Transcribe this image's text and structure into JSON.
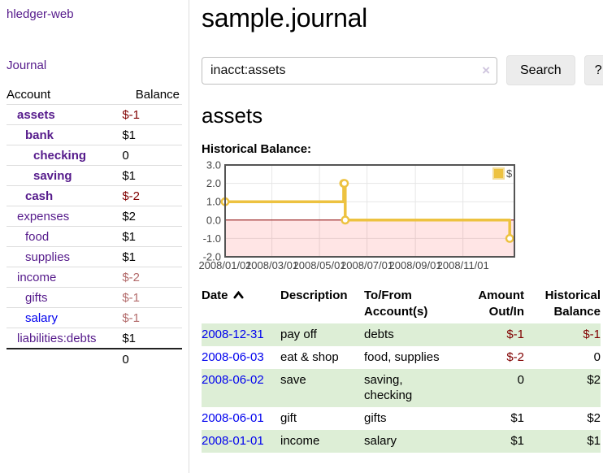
{
  "app": {
    "window_title": "hledger-web"
  },
  "colors": {
    "link_purple": "#551a8b",
    "link_blue": "#0000ee",
    "negative": "#800000",
    "muted_negative": "#b36b6b",
    "row_stripe_green": "#ddeed6"
  },
  "sidebar": {
    "title": "hledger-web",
    "journal_link": "Journal",
    "accounts_table": {
      "headers": {
        "account": "Account",
        "balance": "Balance"
      },
      "rows": [
        {
          "name": "assets",
          "level": 1,
          "bold": true,
          "balance": "$-1",
          "balance_class": "neg",
          "link": "visited"
        },
        {
          "name": "bank",
          "level": 2,
          "bold": true,
          "balance": "$1",
          "balance_class": "",
          "link": "visited"
        },
        {
          "name": "checking",
          "level": 3,
          "bold": true,
          "balance": "0",
          "balance_class": "",
          "link": "visited"
        },
        {
          "name": "saving",
          "level": 3,
          "bold": true,
          "balance": "$1",
          "balance_class": "",
          "link": "visited"
        },
        {
          "name": "cash",
          "level": 2,
          "bold": true,
          "balance": "$-2",
          "balance_class": "neg",
          "link": "visited"
        },
        {
          "name": "expenses",
          "level": 1,
          "bold": false,
          "balance": "$2",
          "balance_class": "",
          "link": "visited"
        },
        {
          "name": "food",
          "level": 2,
          "bold": false,
          "balance": "$1",
          "balance_class": "",
          "link": "visited"
        },
        {
          "name": "supplies",
          "level": 2,
          "bold": false,
          "balance": "$1",
          "balance_class": "",
          "link": "visited"
        },
        {
          "name": "income",
          "level": 1,
          "bold": false,
          "balance": "$-2",
          "balance_class": "muted",
          "link": "visited"
        },
        {
          "name": "gifts",
          "level": 2,
          "bold": false,
          "balance": "$-1",
          "balance_class": "muted",
          "link": "visited"
        },
        {
          "name": "salary",
          "level": 2,
          "bold": false,
          "balance": "$-1",
          "balance_class": "muted",
          "link": "unvisited"
        },
        {
          "name": "liabilities:debts",
          "level": 1,
          "bold": false,
          "balance": "$1",
          "balance_class": "",
          "link": "visited"
        }
      ],
      "total": "0"
    }
  },
  "main": {
    "title": "sample.journal",
    "search": {
      "value": "inacct:assets",
      "clear_icon": "×",
      "button_label": "Search",
      "help_label": "?"
    },
    "account_heading": "assets",
    "register": {
      "headers": {
        "date": "Date",
        "description": "Description",
        "accounts": "To/From Account(s)",
        "amount": "Amount Out/In",
        "balance": "Historical Balance"
      },
      "sort": {
        "column": "Date",
        "direction": "ascending"
      },
      "rows": [
        {
          "date": "2008-12-31",
          "description": "pay off",
          "accounts": "debts",
          "amount": "$-1",
          "amount_negative": true,
          "balance": "$-1",
          "balance_negative": true
        },
        {
          "date": "2008-06-03",
          "description": "eat & shop",
          "accounts": "food, supplies",
          "amount": "$-2",
          "amount_negative": true,
          "balance": "0",
          "balance_negative": false
        },
        {
          "date": "2008-06-02",
          "description": "save",
          "accounts": "saving, checking",
          "amount": "0",
          "amount_negative": false,
          "balance": "$2",
          "balance_negative": false
        },
        {
          "date": "2008-06-01",
          "description": "gift",
          "accounts": "gifts",
          "amount": "$1",
          "amount_negative": false,
          "balance": "$2",
          "balance_negative": false
        },
        {
          "date": "2008-01-01",
          "description": "income",
          "accounts": "salary",
          "amount": "$1",
          "amount_negative": false,
          "balance": "$1",
          "balance_negative": false
        }
      ]
    }
  },
  "chart_data": {
    "type": "line",
    "title": "Historical Balance:",
    "step": true,
    "series": [
      {
        "name": "$",
        "color": "#edc240",
        "points": [
          {
            "x": "2008-01-01",
            "day": 0,
            "y": 1
          },
          {
            "x": "2008-06-01",
            "day": 152,
            "y": 2
          },
          {
            "x": "2008-06-02",
            "day": 153,
            "y": 2
          },
          {
            "x": "2008-06-03",
            "day": 154,
            "y": 0
          },
          {
            "x": "2008-12-31",
            "day": 365,
            "y": -1
          }
        ]
      }
    ],
    "xticks": [
      {
        "label": "2008/01/01",
        "day": 0
      },
      {
        "label": "2008/03/01",
        "day": 60
      },
      {
        "label": "2008/05/01",
        "day": 121
      },
      {
        "label": "2008/07/01",
        "day": 182
      },
      {
        "label": "2008/09/01",
        "day": 244
      },
      {
        "label": "2008/11/01",
        "day": 305
      }
    ],
    "yticks": [
      "3.0",
      "2.0",
      "1.0",
      "0.0",
      "-1.0",
      "-2.0"
    ],
    "ylim": [
      -2,
      3
    ],
    "xlim_days": [
      0,
      371
    ],
    "grid": true,
    "grid_color": "#e6e6e6",
    "border_color": "#545454",
    "zero_line_color": "#8b0000",
    "negative_region_color": "rgba(255,0,0,0.10)",
    "legend": {
      "label": "$",
      "swatch_color": "#edc240",
      "swatch_border": "#f3dd9a",
      "position": "top-right"
    }
  }
}
